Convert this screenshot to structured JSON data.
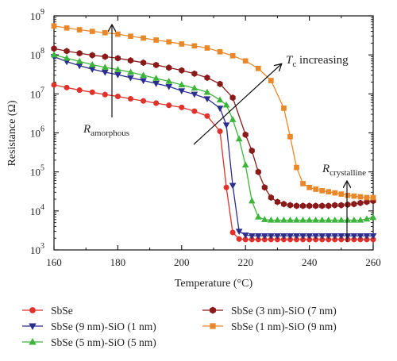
{
  "chart_data": {
    "type": "line",
    "xlabel": "Temperature (°C)",
    "ylabel": "Resistance (Ω)",
    "xlim": [
      160,
      260
    ],
    "ylim": [
      1000,
      1000000000
    ],
    "yscale": "log",
    "x_ticks": [
      "160",
      "180",
      "200",
      "220",
      "240",
      "260"
    ],
    "y_ticks": [
      {
        "base": "10",
        "exp": "3"
      },
      {
        "base": "10",
        "exp": "4"
      },
      {
        "base": "10",
        "exp": "5"
      },
      {
        "base": "10",
        "exp": "6"
      },
      {
        "base": "10",
        "exp": "7"
      },
      {
        "base": "10",
        "exp": "8"
      },
      {
        "base": "10",
        "exp": "9"
      }
    ],
    "annotations": {
      "tc": {
        "main": "T",
        "sub": "c",
        "rest": " increasing"
      },
      "amorphous": {
        "main": "R",
        "sub": "amorphous"
      },
      "crystalline": {
        "main": "R",
        "sub": "crystalline"
      }
    },
    "series": [
      {
        "name": "SbSe",
        "color": "#e0322b",
        "marker": "circle",
        "x": [
          160,
          164,
          168,
          172,
          176,
          180,
          184,
          188,
          192,
          196,
          200,
          204,
          208,
          212,
          214,
          216,
          218,
          220,
          222,
          224,
          226,
          228,
          230,
          232,
          234,
          236,
          238,
          240,
          242,
          244,
          246,
          248,
          250,
          252,
          254,
          256,
          258,
          260
        ],
        "y": [
          17000000,
          14500000,
          12500000,
          11000000,
          9600000,
          8600000,
          7500000,
          6600000,
          5800000,
          5100000,
          4500000,
          3600000,
          2700000,
          1100000,
          40000,
          2800,
          1900,
          1850,
          1850,
          1850,
          1850,
          1850,
          1850,
          1850,
          1850,
          1850,
          1850,
          1850,
          1850,
          1850,
          1850,
          1850,
          1850,
          1850,
          1850,
          1850,
          1850,
          1850
        ]
      },
      {
        "name": "SbSe (9 nm)-SiO (1 nm)",
        "color": "#2b2e8c",
        "marker": "triangle-down",
        "x": [
          160,
          164,
          168,
          172,
          176,
          180,
          184,
          188,
          192,
          196,
          200,
          204,
          208,
          212,
          214,
          216,
          218,
          220,
          222,
          224,
          226,
          228,
          230,
          232,
          234,
          236,
          238,
          240,
          242,
          244,
          246,
          248,
          250,
          252,
          254,
          256,
          258,
          260
        ],
        "y": [
          90000000,
          67000000,
          53000000,
          43000000,
          36000000,
          31000000,
          26000000,
          22000000,
          18500000,
          15500000,
          12000000,
          9800000,
          7500000,
          4300000,
          1600000,
          45000,
          3000,
          2400,
          2300,
          2300,
          2300,
          2300,
          2300,
          2300,
          2300,
          2300,
          2300,
          2300,
          2300,
          2300,
          2300,
          2300,
          2300,
          2300,
          2300,
          2300,
          2300,
          2300
        ]
      },
      {
        "name": "SbSe (5 nm)-SiO (5 nm)",
        "color": "#3cb53a",
        "marker": "triangle-up",
        "x": [
          160,
          164,
          168,
          172,
          176,
          180,
          184,
          188,
          192,
          196,
          200,
          204,
          208,
          212,
          214,
          216,
          218,
          220,
          222,
          224,
          226,
          228,
          230,
          232,
          234,
          236,
          238,
          240,
          242,
          244,
          246,
          248,
          250,
          252,
          254,
          256,
          258,
          260
        ],
        "y": [
          100000000,
          82000000,
          68000000,
          56000000,
          48000000,
          42000000,
          36000000,
          30000000,
          25000000,
          21000000,
          17000000,
          14000000,
          11000000,
          7000000,
          5200000,
          2200000,
          700000,
          150000,
          18000,
          7000,
          6000,
          5800,
          5800,
          5800,
          5800,
          5800,
          5800,
          5800,
          5800,
          5800,
          5800,
          5800,
          5800,
          5800,
          5800,
          5800,
          6200,
          6800
        ]
      },
      {
        "name": "SbSe (3 nm)-SiO (7 nm)",
        "color": "#8a1a1a",
        "marker": "hexagon",
        "x": [
          160,
          164,
          168,
          172,
          176,
          180,
          184,
          188,
          192,
          196,
          200,
          204,
          208,
          212,
          216,
          220,
          222,
          224,
          226,
          228,
          230,
          232,
          234,
          236,
          238,
          240,
          242,
          244,
          246,
          248,
          250,
          252,
          254,
          256,
          258,
          260
        ],
        "y": [
          145000000,
          125000000,
          110000000,
          98000000,
          90000000,
          82000000,
          72000000,
          63000000,
          55000000,
          47000000,
          40000000,
          33000000,
          26000000,
          18000000,
          8000000,
          900000,
          350000,
          100000,
          40000,
          22000,
          17000,
          15000,
          14000,
          13500,
          13500,
          13500,
          13500,
          13500,
          13500,
          14000,
          14000,
          14500,
          15000,
          16000,
          17000,
          18000
        ]
      },
      {
        "name": "SbSe (1 nm)-SiO (9 nm)",
        "color": "#e8882a",
        "marker": "square",
        "x": [
          160,
          164,
          168,
          172,
          176,
          180,
          184,
          188,
          192,
          196,
          200,
          204,
          208,
          212,
          216,
          220,
          224,
          228,
          232,
          234,
          236,
          238,
          240,
          242,
          244,
          246,
          248,
          250,
          252,
          254,
          256,
          258,
          260
        ],
        "y": [
          550000000,
          490000000,
          440000000,
          400000000,
          370000000,
          340000000,
          300000000,
          270000000,
          240000000,
          215000000,
          190000000,
          170000000,
          150000000,
          120000000,
          95000000,
          70000000,
          45000000,
          22000000,
          4300000,
          800000,
          130000,
          50000,
          40000,
          36000,
          33000,
          31000,
          29000,
          27000,
          25000,
          24000,
          23000,
          22000,
          22000
        ]
      }
    ]
  }
}
